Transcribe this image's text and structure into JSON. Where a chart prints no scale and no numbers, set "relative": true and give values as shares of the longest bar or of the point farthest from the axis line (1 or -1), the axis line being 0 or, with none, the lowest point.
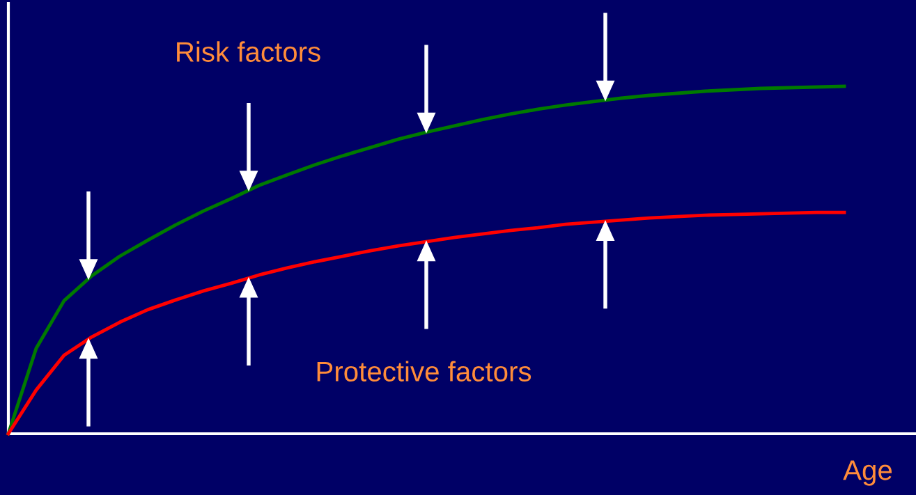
{
  "chart_data": {
    "type": "line",
    "relative": true,
    "xlabel": "Age",
    "categories": [
      null,
      null,
      null,
      null,
      null,
      null,
      null,
      null,
      null,
      null,
      null,
      null,
      null,
      null,
      null,
      null,
      null,
      null,
      null,
      null,
      null,
      null,
      null,
      null,
      null,
      null,
      null,
      null,
      null,
      null,
      null
    ],
    "series": [
      {
        "color": "#007a00",
        "values": [
          0,
          0.246,
          0.383,
          0.455,
          0.511,
          0.557,
          0.601,
          0.641,
          0.677,
          0.715,
          0.745,
          0.774,
          0.8,
          0.824,
          0.848,
          0.868,
          0.886,
          0.904,
          0.92,
          0.934,
          0.946,
          0.956,
          0.966,
          0.974,
          0.98,
          0.986,
          0.99,
          0.994,
          0.996,
          0.998,
          1
        ]
      },
      {
        "color": "#ff0000",
        "values": [
          0,
          0.126,
          0.226,
          0.279,
          0.321,
          0.357,
          0.385,
          0.411,
          0.433,
          0.457,
          0.477,
          0.495,
          0.511,
          0.527,
          0.541,
          0.553,
          0.565,
          0.575,
          0.585,
          0.593,
          0.603,
          0.609,
          0.615,
          0.621,
          0.625,
          0.629,
          0.631,
          0.633,
          0.635,
          0.637,
          0.637
        ]
      }
    ],
    "annotations": [
      "Risk factors",
      "Protective factors"
    ],
    "grid": false,
    "marker": "none",
    "line_style": "solid"
  }
}
